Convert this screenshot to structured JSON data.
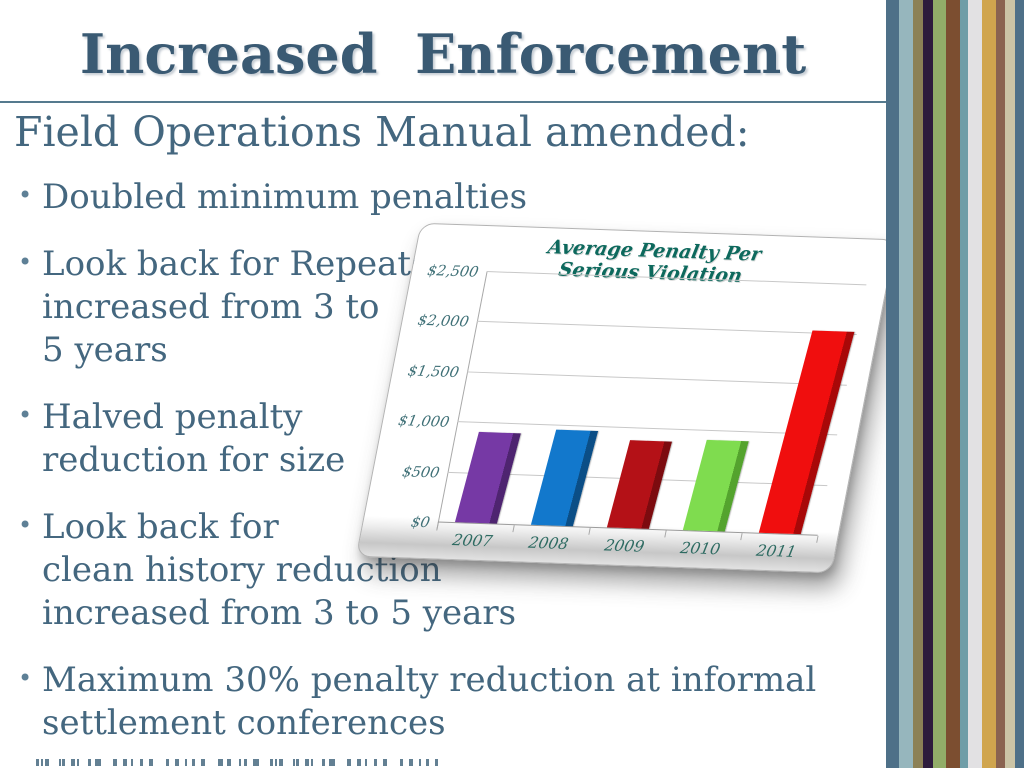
{
  "slide": {
    "title": "Increased  Enforcement",
    "subtitle": "Field Operations Manual amended:",
    "bullets": [
      "Doubled minimum penalties",
      "Look back for Repeats\nincreased from 3 to\n5 years",
      "Halved penalty\nreduction for size",
      "Look back for\nclean history reduction\nincreased from 3 to 5 years",
      "Maximum 30% penalty reduction at informal\nsettlement conferences"
    ],
    "colors": {
      "title_text": "#3a5a73",
      "body_text": "#44677f",
      "rule": "#557a8e",
      "bullet_dot": "#5e8096"
    }
  },
  "chart_data": {
    "type": "bar",
    "title": "Average Penalty Per\nSerious Violation",
    "categories": [
      "2007",
      "2008",
      "2009",
      "2010",
      "2011"
    ],
    "values": [
      900,
      950,
      875,
      900,
      2025
    ],
    "ylim": [
      0,
      2500
    ],
    "ytick_labels": [
      "$0",
      "$500",
      "$1,000",
      "$1,500",
      "$2,000",
      "$2,500"
    ],
    "xlabel": "",
    "ylabel": "",
    "grid": true,
    "legend": false,
    "title_color": "#0d695d",
    "bar_colors": [
      {
        "face": "#7639a5",
        "side": "#4e2470"
      },
      {
        "face": "#1278cc",
        "side": "#0b4e86"
      },
      {
        "face": "#b41117",
        "side": "#7c0b0f"
      },
      {
        "face": "#7fdc4f",
        "side": "#54a32e"
      },
      {
        "face": "#f00e0e",
        "side": "#a80808"
      }
    ]
  },
  "decor": {
    "stripes": [
      {
        "color": "#4e7088",
        "width": 13
      },
      {
        "color": "#96b6bd",
        "width": 14
      },
      {
        "color": "#8c8156",
        "width": 10
      },
      {
        "color": "#2e1c3c",
        "width": 10
      },
      {
        "color": "#92ad68",
        "width": 13
      },
      {
        "color": "#7c4e30",
        "width": 14
      },
      {
        "color": "#6f9da7",
        "width": 8
      },
      {
        "color": "#e2e1e3",
        "width": 14
      },
      {
        "color": "#d0a54e",
        "width": 14
      },
      {
        "color": "#8a6350",
        "width": 9
      },
      {
        "color": "#cbc4a6",
        "width": 10
      },
      {
        "color": "#4e7088",
        "width": 9
      }
    ]
  }
}
